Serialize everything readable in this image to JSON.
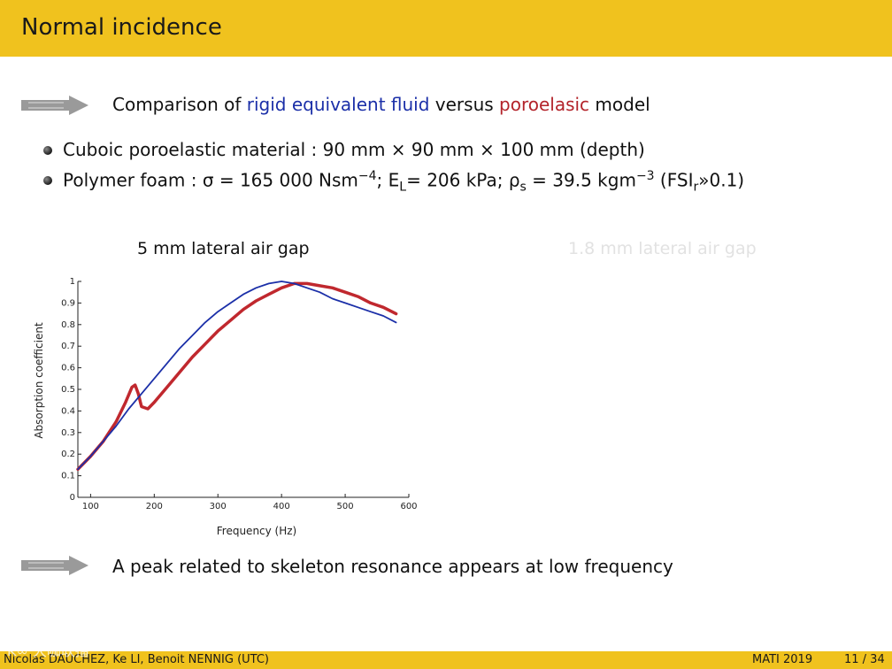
{
  "header": {
    "title": "Normal incidence"
  },
  "intro": {
    "prefix": "Comparison of ",
    "blue_text": "rigid equivalent fluid",
    "middle": " versus ",
    "red_text": "poroelasic",
    "suffix": " model"
  },
  "bullets": {
    "line1": "Cuboic poroelastic material : 90 mm × 90 mm × 100 mm (depth)",
    "line2_a": "Polymer foam : σ = 165 000 Nsm",
    "line2_sup1": "−4",
    "line2_b": "; E",
    "line2_sub1": "L",
    "line2_c": "= 206 kPa; ρ",
    "line2_sub2": "s",
    "line2_d": " = 39.5 kgm",
    "line2_sup2": "−3",
    "line2_e": " (FSI",
    "line2_sub3": "r",
    "line2_f": "»0.1)"
  },
  "chart_left_title": "5 mm lateral air gap",
  "chart_right_title": "1.8 mm lateral air gap",
  "chart_data": {
    "type": "line",
    "title": "5 mm lateral air gap",
    "xlabel": "Frequency (Hz)",
    "ylabel": "Absorption coefficient",
    "xlim": [
      80,
      600
    ],
    "ylim": [
      0,
      1
    ],
    "xticks": [
      100,
      200,
      300,
      400,
      500,
      600
    ],
    "yticks": [
      0,
      0.1,
      0.2,
      0.3,
      0.4,
      0.5,
      0.6,
      0.7,
      0.8,
      0.9,
      1
    ],
    "grid": false,
    "series": [
      {
        "model": "rigid equivalent fluid",
        "color": "#1b2fa8",
        "x": [
          80,
          100,
          120,
          140,
          160,
          180,
          200,
          220,
          240,
          260,
          280,
          300,
          320,
          340,
          360,
          380,
          400,
          420,
          440,
          460,
          480,
          500,
          520,
          540,
          560,
          580
        ],
        "y": [
          0.13,
          0.19,
          0.26,
          0.33,
          0.41,
          0.48,
          0.55,
          0.62,
          0.69,
          0.75,
          0.81,
          0.86,
          0.9,
          0.94,
          0.97,
          0.99,
          1.0,
          0.99,
          0.97,
          0.95,
          0.92,
          0.9,
          0.88,
          0.86,
          0.84,
          0.81
        ]
      },
      {
        "model": "poroelasic",
        "color": "#c0282e",
        "x": [
          80,
          100,
          120,
          140,
          155,
          165,
          170,
          175,
          180,
          190,
          200,
          220,
          240,
          260,
          280,
          300,
          320,
          340,
          360,
          380,
          400,
          420,
          440,
          460,
          480,
          500,
          520,
          540,
          560,
          580
        ],
        "y": [
          0.13,
          0.19,
          0.26,
          0.35,
          0.44,
          0.51,
          0.52,
          0.48,
          0.42,
          0.41,
          0.44,
          0.51,
          0.58,
          0.65,
          0.71,
          0.77,
          0.82,
          0.87,
          0.91,
          0.94,
          0.97,
          0.99,
          0.99,
          0.98,
          0.97,
          0.95,
          0.93,
          0.9,
          0.88,
          0.85
        ]
      }
    ]
  },
  "conclusion": "A peak related to skeleton resonance appears at low frequency",
  "footer": {
    "authors": "Nicolas DAUCHEZ, Ke LI, Benoit NENNIG (UTC)",
    "conference": "MATI 2019",
    "page": "11 / 34"
  },
  "watermark": "K∞ 大咖联播"
}
